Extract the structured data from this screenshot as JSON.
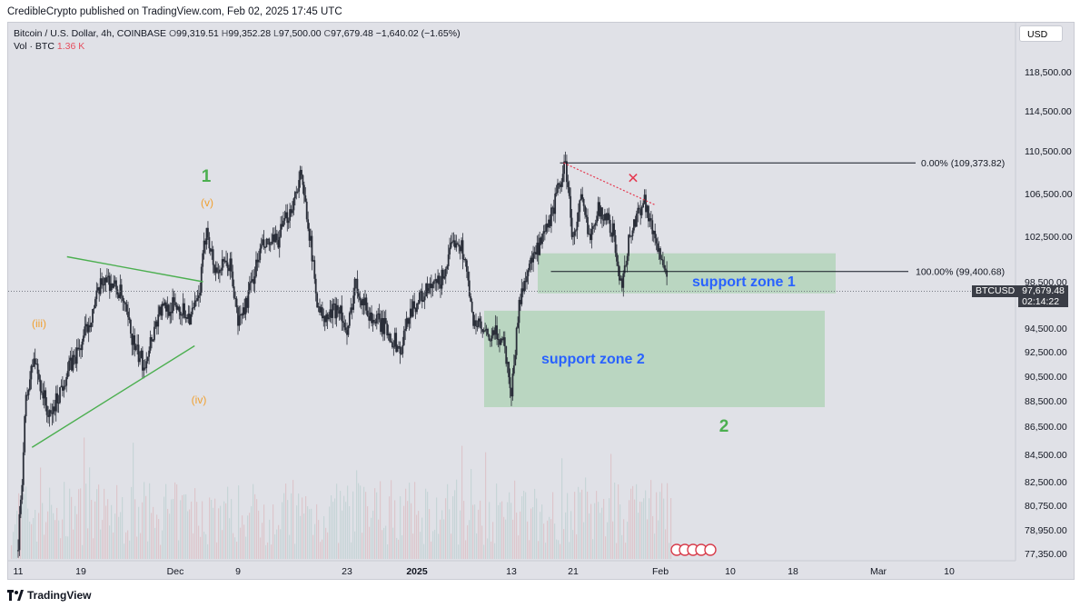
{
  "header": {
    "publisher": "CredibleCrypto published on TradingView.com, Feb 02, 2025 17:45 UTC"
  },
  "legend": {
    "symbol": "Bitcoin / U.S. Dollar, 4h, COINBASE",
    "o_label": "O",
    "o_value": "99,319.51",
    "h_label": "H",
    "h_value": "99,352.28",
    "l_label": "L",
    "l_value": "97,500.00",
    "c_label": "C",
    "c_value": "97,679.48",
    "change": "−1,640.02 (−1.65%)",
    "vol_label": "Vol · BTC",
    "vol_value": "1.36 K"
  },
  "currency_button": "USD",
  "last_price": {
    "symbol": "BTCUSD",
    "price": "97,679.48",
    "countdown": "02:14:22"
  },
  "footer": {
    "brand": "TradingView"
  },
  "colors": {
    "background": "#e0e1e7",
    "candle": "#2a2e39",
    "zone": "#a9d2b1",
    "wave_green": "#4caf50",
    "wave_orange": "#f0a030",
    "label_blue": "#2962ff",
    "fib_line": "#131722",
    "red_dotted": "#e53950"
  },
  "chart_data": {
    "type": "candlestick",
    "title": "Bitcoin / U.S. Dollar, 4h, COINBASE",
    "y_axis": {
      "ticks": [
        "118,500.00",
        "114,500.00",
        "110,500.00",
        "106,500.00",
        "102,500.00",
        "98,500.00",
        "94,500.00",
        "92,500.00",
        "90,500.00",
        "88,500.00",
        "86,500.00",
        "84,500.00",
        "82,500.00",
        "80,750.00",
        "78,950.00",
        "77,350.00"
      ]
    },
    "x_axis": {
      "ticks": [
        "11",
        "19",
        "Dec",
        "9",
        "23",
        "2025",
        "13",
        "21",
        "Feb",
        "10",
        "18",
        "Mar",
        "10"
      ]
    },
    "price_path": [
      [
        "Nov 11",
        77500
      ],
      [
        "Nov 12",
        88500
      ],
      [
        "Nov 13",
        92000
      ],
      [
        "Nov 15",
        87000
      ],
      [
        "Nov 17",
        90500
      ],
      [
        "Nov 19",
        93000
      ],
      [
        "Nov 21",
        97000
      ],
      [
        "Nov 22",
        99000
      ],
      [
        "Nov 24",
        97500
      ],
      [
        "Nov 26",
        92500
      ],
      [
        "Nov 27",
        91500
      ],
      [
        "Nov 29",
        96000
      ],
      [
        "Dec 1",
        96500
      ],
      [
        "Dec 3",
        95500
      ],
      [
        "Dec 4",
        97000
      ],
      [
        "Dec 5",
        103500
      ],
      [
        "Dec 6",
        99500
      ],
      [
        "Dec 8",
        100000
      ],
      [
        "Dec 9",
        95000
      ],
      [
        "Dec 10",
        96500
      ],
      [
        "Dec 12",
        101500
      ],
      [
        "Dec 14",
        102000
      ],
      [
        "Dec 16",
        105500
      ],
      [
        "Dec 17",
        108300
      ],
      [
        "Dec 18",
        104000
      ],
      [
        "Dec 19",
        97500
      ],
      [
        "Dec 20",
        95000
      ],
      [
        "Dec 22",
        96500
      ],
      [
        "Dec 23",
        93500
      ],
      [
        "Dec 24",
        98500
      ],
      [
        "Dec 26",
        95500
      ],
      [
        "Dec 28",
        94500
      ],
      [
        "Dec 30",
        92500
      ],
      [
        "Dec 31",
        96000
      ],
      [
        "Jan 2",
        97500
      ],
      [
        "Jan 4",
        98500
      ],
      [
        "Jan 6",
        102500
      ],
      [
        "Jan 7",
        101000
      ],
      [
        "Jan 8",
        95500
      ],
      [
        "Jan 10",
        93500
      ],
      [
        "Jan 11",
        94000
      ],
      [
        "Jan 12",
        93500
      ],
      [
        "Jan 13",
        89200
      ],
      [
        "Jan 14",
        96500
      ],
      [
        "Jan 15",
        99500
      ],
      [
        "Jan 17",
        102000
      ],
      [
        "Jan 18",
        104000
      ],
      [
        "Jan 20",
        109373
      ],
      [
        "Jan 21",
        102000
      ],
      [
        "Jan 22",
        106000
      ],
      [
        "Jan 23",
        102500
      ],
      [
        "Jan 24",
        105000
      ],
      [
        "Jan 25",
        104500
      ],
      [
        "Jan 26",
        103000
      ],
      [
        "Jan 27",
        98000
      ],
      [
        "Jan 28",
        102000
      ],
      [
        "Jan 29",
        104500
      ],
      [
        "Jan 30",
        106000
      ],
      [
        "Jan 31",
        103000
      ],
      [
        "Feb 1",
        101000
      ],
      [
        "Feb 2",
        97679
      ]
    ],
    "drawings": {
      "fib_top": {
        "label": "0.00% (109,373.82)",
        "price": 109373.82
      },
      "fib_bottom": {
        "label": "100.00% (99,400.68)",
        "price": 99400.68
      },
      "zone1": {
        "label": "support zone 1",
        "from": 97500,
        "to": 101000
      },
      "zone2": {
        "label": "support zone 2",
        "from": 88000,
        "to": 96000
      },
      "wave_labels": {
        "w1": "1",
        "w2": "2",
        "wv": "(v)",
        "wiii": "(iii)",
        "wiv": "(iv)"
      },
      "x_mark": "✕"
    },
    "current_price": 97679.48,
    "grid": false,
    "legend_position": "top-left"
  }
}
